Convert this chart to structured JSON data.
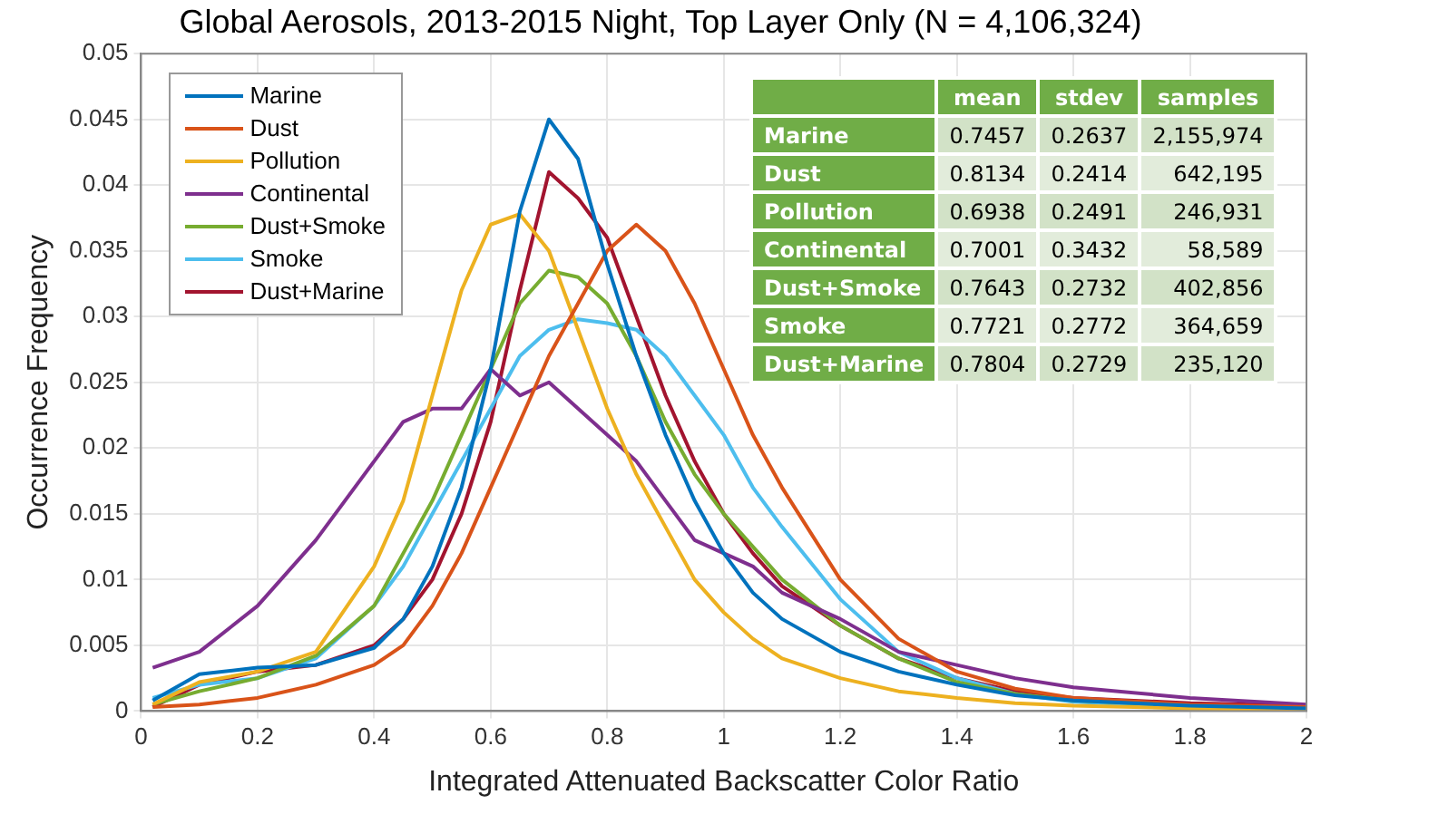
{
  "chart_data": [
    {
      "type": "line",
      "title": "Global Aerosols, 2013-2015 Night, Top Layer Only (N = 4,106,324)",
      "xlabel": "Integrated Attenuated Backscatter Color Ratio",
      "ylabel": "Occurrence Frequency",
      "x": [
        0.02,
        0.1,
        0.2,
        0.3,
        0.4,
        0.45,
        0.5,
        0.55,
        0.6,
        0.65,
        0.7,
        0.75,
        0.8,
        0.85,
        0.9,
        0.95,
        1.0,
        1.05,
        1.1,
        1.2,
        1.3,
        1.4,
        1.5,
        1.6,
        1.8,
        2.0
      ],
      "xlim": [
        0,
        2
      ],
      "xticks": [
        0,
        0.2,
        0.4,
        0.6,
        0.8,
        1,
        1.2,
        1.4,
        1.6,
        1.8,
        2
      ],
      "ylim": [
        0,
        0.05
      ],
      "yticks": [
        0,
        0.005,
        0.01,
        0.015,
        0.02,
        0.025,
        0.03,
        0.035,
        0.04,
        0.045,
        0.05
      ],
      "grid": true,
      "legend": "top left",
      "marker": "none",
      "line_style": "solid",
      "series": [
        {
          "name": "Marine",
          "color": "#0072bd",
          "values": [
            0.0008,
            0.0028,
            0.0033,
            0.0035,
            0.0048,
            0.007,
            0.011,
            0.017,
            0.026,
            0.038,
            0.045,
            0.042,
            0.034,
            0.027,
            0.021,
            0.016,
            0.012,
            0.009,
            0.007,
            0.0045,
            0.003,
            0.002,
            0.0012,
            0.0008,
            0.0004,
            0.0002
          ]
        },
        {
          "name": "Dust",
          "color": "#d95319",
          "values": [
            0.0003,
            0.0005,
            0.001,
            0.002,
            0.0035,
            0.005,
            0.008,
            0.012,
            0.017,
            0.022,
            0.027,
            0.031,
            0.035,
            0.037,
            0.035,
            0.031,
            0.026,
            0.021,
            0.017,
            0.01,
            0.0055,
            0.003,
            0.0017,
            0.001,
            0.0005,
            0.0003
          ]
        },
        {
          "name": "Pollution",
          "color": "#edb120",
          "values": [
            0.0005,
            0.0022,
            0.003,
            0.0045,
            0.011,
            0.016,
            0.024,
            0.032,
            0.037,
            0.0378,
            0.035,
            0.029,
            0.023,
            0.018,
            0.014,
            0.01,
            0.0075,
            0.0055,
            0.004,
            0.0025,
            0.0015,
            0.001,
            0.0006,
            0.0004,
            0.0002,
            0.0001
          ]
        },
        {
          "name": "Continental",
          "color": "#7e2f8e",
          "values": [
            0.0033,
            0.0045,
            0.008,
            0.013,
            0.019,
            0.022,
            0.023,
            0.023,
            0.026,
            0.024,
            0.025,
            0.023,
            0.021,
            0.019,
            0.016,
            0.013,
            0.012,
            0.011,
            0.009,
            0.007,
            0.0045,
            0.0035,
            0.0025,
            0.0018,
            0.001,
            0.0005
          ]
        },
        {
          "name": "Dust+Smoke",
          "color": "#77ac30",
          "values": [
            0.0005,
            0.0015,
            0.0025,
            0.0042,
            0.008,
            0.012,
            0.016,
            0.021,
            0.026,
            0.031,
            0.0335,
            0.033,
            0.031,
            0.027,
            0.022,
            0.018,
            0.015,
            0.0125,
            0.01,
            0.0065,
            0.004,
            0.0022,
            0.0013,
            0.0008,
            0.0004,
            0.0002
          ]
        },
        {
          "name": "Smoke",
          "color": "#4dbeee",
          "values": [
            0.001,
            0.002,
            0.0025,
            0.004,
            0.008,
            0.011,
            0.015,
            0.019,
            0.023,
            0.027,
            0.029,
            0.0298,
            0.0295,
            0.029,
            0.027,
            0.024,
            0.021,
            0.017,
            0.014,
            0.0085,
            0.0045,
            0.0025,
            0.0013,
            0.0007,
            0.0003,
            0.0002
          ]
        },
        {
          "name": "Dust+Marine",
          "color": "#a2142f",
          "values": [
            0.0003,
            0.002,
            0.003,
            0.0035,
            0.005,
            0.007,
            0.01,
            0.015,
            0.022,
            0.032,
            0.041,
            0.039,
            0.036,
            0.03,
            0.024,
            0.019,
            0.015,
            0.012,
            0.0095,
            0.0065,
            0.004,
            0.0025,
            0.0015,
            0.001,
            0.0006,
            0.0004
          ]
        }
      ]
    },
    {
      "type": "other",
      "categories": [
        "mean",
        "stdev",
        "samples"
      ],
      "y_categories": [
        "Marine",
        "Dust",
        "Pollution",
        "Continental",
        "Dust+Smoke",
        "Smoke",
        "Dust+Marine"
      ],
      "cell_labels": [
        [
          "0.7457",
          "0.2637",
          "2,155,974"
        ],
        [
          "0.8134",
          "0.2414",
          "642,195"
        ],
        [
          "0.6938",
          "0.2491",
          "246,931"
        ],
        [
          "0.7001",
          "0.3432",
          "58,589"
        ],
        [
          "0.7643",
          "0.2732",
          "402,856"
        ],
        [
          "0.7721",
          "0.2772",
          "364,659"
        ],
        [
          "0.7804",
          "0.2729",
          "235,120"
        ]
      ]
    }
  ]
}
